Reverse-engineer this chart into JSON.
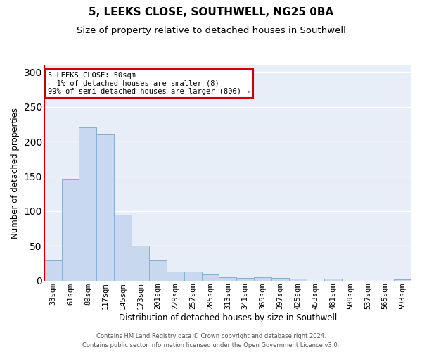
{
  "title": "5, LEEKS CLOSE, SOUTHWELL, NG25 0BA",
  "subtitle": "Size of property relative to detached houses in Southwell",
  "xlabel": "Distribution of detached houses by size in Southwell",
  "ylabel": "Number of detached properties",
  "bar_labels": [
    "33sqm",
    "61sqm",
    "89sqm",
    "117sqm",
    "145sqm",
    "173sqm",
    "201sqm",
    "229sqm",
    "257sqm",
    "285sqm",
    "313sqm",
    "341sqm",
    "369sqm",
    "397sqm",
    "425sqm",
    "453sqm",
    "481sqm",
    "509sqm",
    "537sqm",
    "565sqm",
    "593sqm"
  ],
  "bar_values": [
    29,
    146,
    220,
    210,
    95,
    50,
    29,
    13,
    13,
    10,
    5,
    4,
    5,
    4,
    3,
    0,
    3,
    0,
    0,
    0,
    2
  ],
  "bar_color": "#c8d8ee",
  "bar_edgecolor": "#85afd4",
  "ylim": [
    0,
    310
  ],
  "yticks": [
    0,
    50,
    100,
    150,
    200,
    250,
    300
  ],
  "annotation_text": "5 LEEKS CLOSE: 50sqm\n← 1% of detached houses are smaller (8)\n99% of semi-detached houses are larger (806) →",
  "annotation_box_facecolor": "#ffffff",
  "annotation_box_edgecolor": "#cc0000",
  "marker_color": "#cc0000",
  "footer_line1": "Contains HM Land Registry data © Crown copyright and database right 2024.",
  "footer_line2": "Contains public sector information licensed under the Open Government Licence v3.0.",
  "fig_facecolor": "#ffffff",
  "axes_facecolor": "#e8eef8",
  "grid_color": "#ffffff",
  "title_fontsize": 11,
  "subtitle_fontsize": 9.5,
  "tick_fontsize": 7.5,
  "ylabel_fontsize": 8.5,
  "xlabel_fontsize": 8.5,
  "footer_fontsize": 6
}
